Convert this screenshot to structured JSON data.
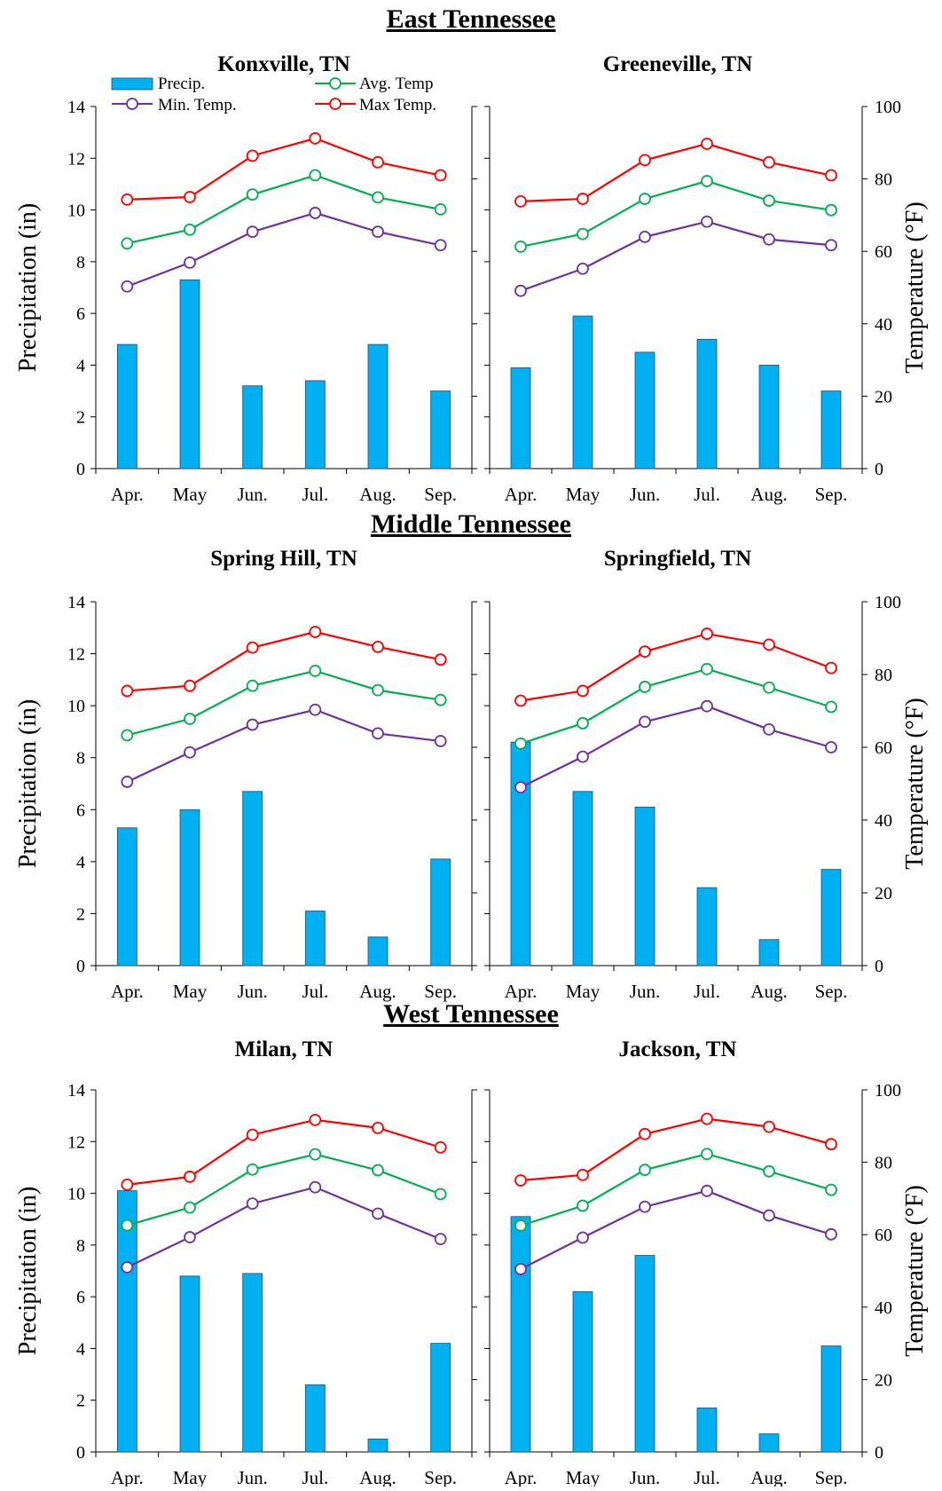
{
  "sections": [
    {
      "title": "East Tennessee"
    },
    {
      "title": "Middle Tennessee"
    },
    {
      "title": "West Tennessee"
    }
  ],
  "legend": {
    "precip": "Precip.",
    "avg": "Avg. Temp",
    "min": "Min. Temp.",
    "max": "Max Temp."
  },
  "colors": {
    "precip": "#00b0f0",
    "precip_stroke": "#1f4e79",
    "avg": "#00b050",
    "min": "#7030a0",
    "max": "#ff0000"
  },
  "chart_data": [
    {
      "type": "bar+line",
      "title": "Konxville, TN",
      "categories": [
        "Apr.",
        "May",
        "Jun.",
        "Jul.",
        "Aug.",
        "Sep."
      ],
      "ylabel": "Precipitation (in)",
      "y2label": "",
      "ylim": [
        0,
        14
      ],
      "y2lim": [
        0,
        100
      ],
      "yticks": [
        0,
        2,
        4,
        6,
        8,
        10,
        12,
        14
      ],
      "y2ticks": [],
      "precip": [
        4.8,
        7.3,
        3.2,
        3.4,
        4.8,
        3.0
      ],
      "max": [
        74.3,
        75.0,
        86.4,
        91.2,
        84.6,
        81.0
      ],
      "avg": [
        62.2,
        66.0,
        75.7,
        81.0,
        74.9,
        71.6
      ],
      "min": [
        50.3,
        56.9,
        65.4,
        70.6,
        65.4,
        61.7
      ]
    },
    {
      "type": "bar+line",
      "title": "Greeneville, TN",
      "categories": [
        "Apr.",
        "May",
        "Jun.",
        "Jul.",
        "Aug.",
        "Sep."
      ],
      "ylabel": "",
      "y2label": "Temperature (°F)",
      "ylim": [
        0,
        14
      ],
      "y2lim": [
        0,
        100
      ],
      "yticks": [],
      "y2ticks": [
        0,
        20,
        40,
        60,
        80,
        100
      ],
      "precip": [
        3.9,
        5.9,
        4.5,
        5.0,
        4.0,
        3.0
      ],
      "max": [
        73.8,
        74.5,
        85.2,
        89.7,
        84.6,
        81.0
      ],
      "avg": [
        61.3,
        64.8,
        74.5,
        79.4,
        74.0,
        71.4
      ],
      "min": [
        49.1,
        55.2,
        64.0,
        68.2,
        63.3,
        61.7
      ]
    },
    {
      "type": "bar+line",
      "title": "Spring Hill, TN",
      "categories": [
        "Apr.",
        "May",
        "Jun.",
        "Jul.",
        "Aug.",
        "Sep."
      ],
      "ylabel": "Precipitation (in)",
      "y2label": "",
      "ylim": [
        0,
        14
      ],
      "y2lim": [
        0,
        100
      ],
      "yticks": [
        0,
        2,
        4,
        6,
        8,
        10,
        12,
        14
      ],
      "y2ticks": [],
      "precip": [
        5.3,
        6.0,
        6.7,
        2.1,
        1.1,
        4.1
      ],
      "max": [
        75.5,
        76.9,
        87.4,
        91.7,
        87.6,
        84.1
      ],
      "avg": [
        63.3,
        67.8,
        76.9,
        81.0,
        75.7,
        73.0
      ],
      "min": [
        50.5,
        58.6,
        66.2,
        70.3,
        63.8,
        61.7
      ]
    },
    {
      "type": "bar+line",
      "title": "Springfield, TN",
      "categories": [
        "Apr.",
        "May",
        "Jun.",
        "Jul.",
        "Aug.",
        "Sep."
      ],
      "ylabel": "",
      "y2label": "Temperature (°F)",
      "ylim": [
        0,
        14
      ],
      "y2lim": [
        0,
        100
      ],
      "yticks": [],
      "y2ticks": [
        0,
        20,
        40,
        60,
        80,
        100
      ],
      "precip": [
        8.6,
        6.7,
        6.1,
        3.0,
        1.0,
        3.7
      ],
      "max": [
        72.8,
        75.5,
        86.3,
        91.2,
        88.2,
        81.8
      ],
      "avg": [
        61.0,
        66.6,
        76.6,
        81.5,
        76.4,
        71.1
      ],
      "min": [
        49.0,
        57.4,
        67.0,
        71.3,
        64.9,
        60.0
      ]
    },
    {
      "type": "bar+line",
      "title": "Milan, TN",
      "categories": [
        "Apr.",
        "May",
        "Jun.",
        "Jul.",
        "Aug.",
        "Sep."
      ],
      "ylabel": "Precipitation (in)",
      "y2label": "",
      "ylim": [
        0,
        14
      ],
      "y2lim": [
        0,
        100
      ],
      "yticks": [
        0,
        2,
        4,
        6,
        8,
        10,
        12,
        14
      ],
      "y2ticks": [],
      "precip": [
        10.1,
        6.8,
        6.9,
        2.6,
        0.5,
        4.2
      ],
      "max": [
        73.8,
        76.0,
        87.6,
        91.7,
        89.5,
        84.1
      ],
      "avg": [
        62.6,
        67.5,
        78.0,
        82.2,
        77.8,
        71.2
      ],
      "min": [
        51.0,
        59.3,
        68.6,
        73.1,
        65.8,
        58.8
      ]
    },
    {
      "type": "bar+line",
      "title": "Jackson, TN",
      "categories": [
        "Apr.",
        "May",
        "Jun.",
        "Jul.",
        "Aug.",
        "Sep."
      ],
      "ylabel": "",
      "y2label": "Temperature (°F)",
      "ylim": [
        0,
        14
      ],
      "y2lim": [
        0,
        100
      ],
      "yticks": [],
      "y2ticks": [
        0,
        20,
        40,
        60,
        80,
        100
      ],
      "precip": [
        9.1,
        6.2,
        7.6,
        1.7,
        0.7,
        4.1
      ],
      "max": [
        75.0,
        76.5,
        87.8,
        92.0,
        89.8,
        85.0
      ],
      "avg": [
        62.5,
        68.0,
        77.9,
        82.3,
        77.5,
        72.4
      ],
      "min": [
        50.5,
        59.2,
        67.7,
        72.1,
        65.3,
        60.1
      ]
    }
  ]
}
